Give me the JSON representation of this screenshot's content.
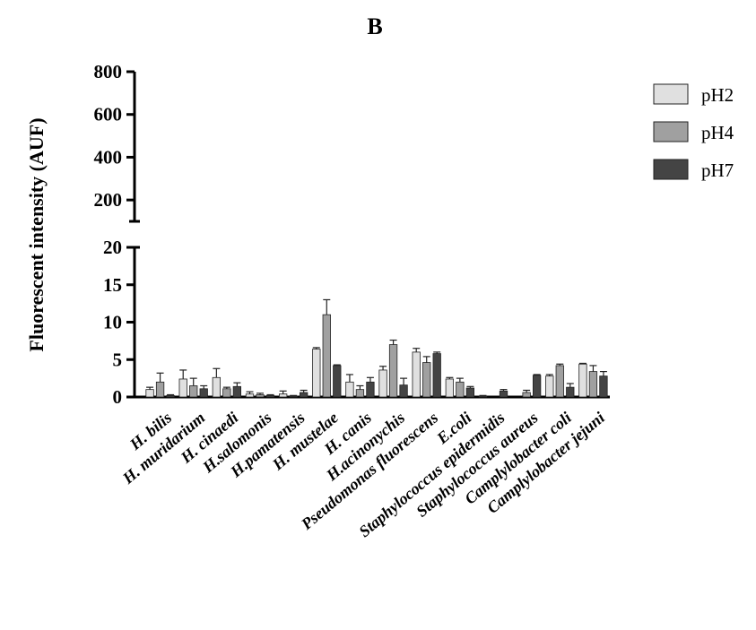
{
  "chart_data": {
    "type": "bar",
    "title": "B",
    "ylabel": "Fluorescent intensity (AUF)",
    "y_scale": "broken",
    "ylim_lower": [
      0,
      20
    ],
    "ylim_upper": [
      100,
      800
    ],
    "yticks_lower": [
      "0",
      "5",
      "10",
      "15",
      "20"
    ],
    "yticks_upper": [
      "200",
      "400",
      "600",
      "800"
    ],
    "grid": false,
    "legend_position": "top-right",
    "categories": [
      "H. bilis",
      "H. muridarium",
      "H. cinaedi",
      "H.salomonis",
      "H.pamatensis",
      "H. mustelae",
      "H. canis",
      "H.acinonychis",
      "Pseudomonas fluorescens",
      "E.coli",
      "Staphylococcus epidermidis",
      "Staphylococcus aureus",
      "Camplylobacter coli",
      "Camplylobacter jejuni"
    ],
    "series": [
      {
        "name": "pH2",
        "color": "#e0e0e0",
        "values": [
          1.0,
          2.4,
          2.6,
          0.4,
          0.4,
          6.4,
          2.0,
          3.6,
          6.0,
          2.4,
          0.1,
          0.0,
          2.8,
          4.4
        ],
        "errors": [
          0.3,
          1.2,
          1.2,
          0.3,
          0.4,
          0.2,
          1.0,
          0.5,
          0.5,
          0.2,
          0.1,
          0.0,
          0.2,
          0.1
        ]
      },
      {
        "name": "pH4",
        "color": "#a0a0a0",
        "values": [
          2.0,
          1.5,
          1.1,
          0.3,
          0.1,
          11.0,
          1.0,
          7.0,
          4.6,
          2.0,
          0.0,
          0.6,
          4.2,
          3.4
        ],
        "errors": [
          1.2,
          1.0,
          0.2,
          0.2,
          0.1,
          2.0,
          0.5,
          0.6,
          0.8,
          0.5,
          0.0,
          0.3,
          0.2,
          0.8
        ]
      },
      {
        "name": "pH7",
        "color": "#444444",
        "values": [
          0.2,
          1.1,
          1.4,
          0.2,
          0.6,
          4.2,
          2.0,
          1.6,
          5.8,
          1.2,
          0.8,
          2.9,
          1.3,
          2.8
        ],
        "errors": [
          0.1,
          0.4,
          0.5,
          0.1,
          0.3,
          0.1,
          0.6,
          0.9,
          0.2,
          0.2,
          0.2,
          0.1,
          0.5,
          0.6
        ]
      }
    ]
  }
}
